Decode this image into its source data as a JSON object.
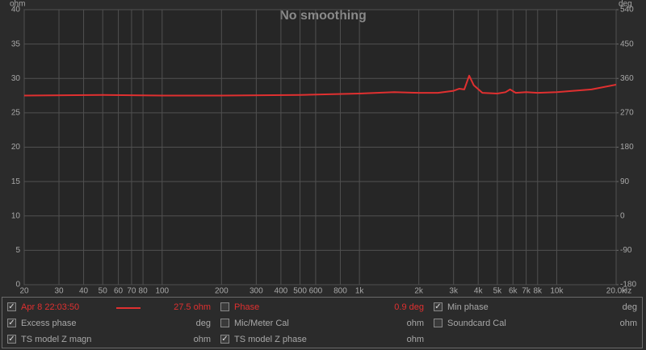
{
  "chart_data": {
    "type": "line",
    "title": "No smoothing",
    "ylabel": "ohm",
    "y2label": "deg",
    "xlabel": "Hz",
    "x": [
      20,
      50,
      100,
      200,
      500,
      1000,
      1500,
      2000,
      2500,
      3000,
      3200,
      3400,
      3600,
      3800,
      4200,
      5000,
      5500,
      5800,
      6200,
      7000,
      8000,
      10000,
      15000,
      20000
    ],
    "series": [
      {
        "name": "Apr 8 22:03:50",
        "color": "#e03030",
        "values": [
          27.5,
          27.6,
          27.5,
          27.5,
          27.6,
          27.8,
          28.0,
          27.9,
          27.9,
          28.2,
          28.5,
          28.4,
          30.4,
          29.0,
          27.9,
          27.8,
          28.0,
          28.4,
          27.9,
          28.0,
          27.9,
          28.0,
          28.4,
          29.1
        ]
      }
    ],
    "xscale": "log",
    "xlim": [
      20,
      20000
    ],
    "xticks": [
      20,
      30,
      40,
      50,
      60,
      70,
      80,
      100,
      200,
      300,
      400,
      500,
      600,
      800,
      {
        "value": 1000,
        "label": "1k"
      },
      {
        "value": 2000,
        "label": "2k"
      },
      {
        "value": 3000,
        "label": "3k"
      },
      {
        "value": 4000,
        "label": "4k"
      },
      {
        "value": 5000,
        "label": "5k"
      },
      {
        "value": 6000,
        "label": "6k"
      },
      {
        "value": 7000,
        "label": "7k"
      },
      {
        "value": 8000,
        "label": "8k"
      },
      {
        "value": 10000,
        "label": "10k"
      },
      {
        "value": 20000,
        "label": "20.0k"
      }
    ],
    "ylim": [
      0,
      40
    ],
    "yticks": [
      0,
      5,
      10,
      15,
      20,
      25,
      30,
      35,
      40
    ],
    "y2lim": [
      -180,
      540
    ],
    "y2ticks": [
      -180,
      -90,
      0,
      90,
      180,
      270,
      360,
      450,
      540
    ],
    "grid": true
  },
  "legend_panel": {
    "rows": [
      [
        {
          "name": "Apr 8 22:03:50",
          "value": "27.5 ohm",
          "checked": true,
          "active": true
        },
        {
          "name": "Phase",
          "value": "0.9 deg",
          "checked": false,
          "active": true
        },
        {
          "name": "Min phase",
          "value": "deg",
          "checked": true,
          "active": false
        }
      ],
      [
        {
          "name": "Excess phase",
          "value": "deg",
          "checked": true,
          "active": false
        },
        {
          "name": "Mic/Meter Cal",
          "value": "ohm",
          "checked": false,
          "active": false
        },
        {
          "name": "Soundcard Cal",
          "value": "ohm",
          "checked": false,
          "active": false
        }
      ],
      [
        {
          "name": "TS model Z magn",
          "value": "ohm",
          "checked": true,
          "active": false
        },
        {
          "name": "TS model Z phase",
          "value": "ohm",
          "checked": true,
          "active": false
        }
      ]
    ]
  }
}
